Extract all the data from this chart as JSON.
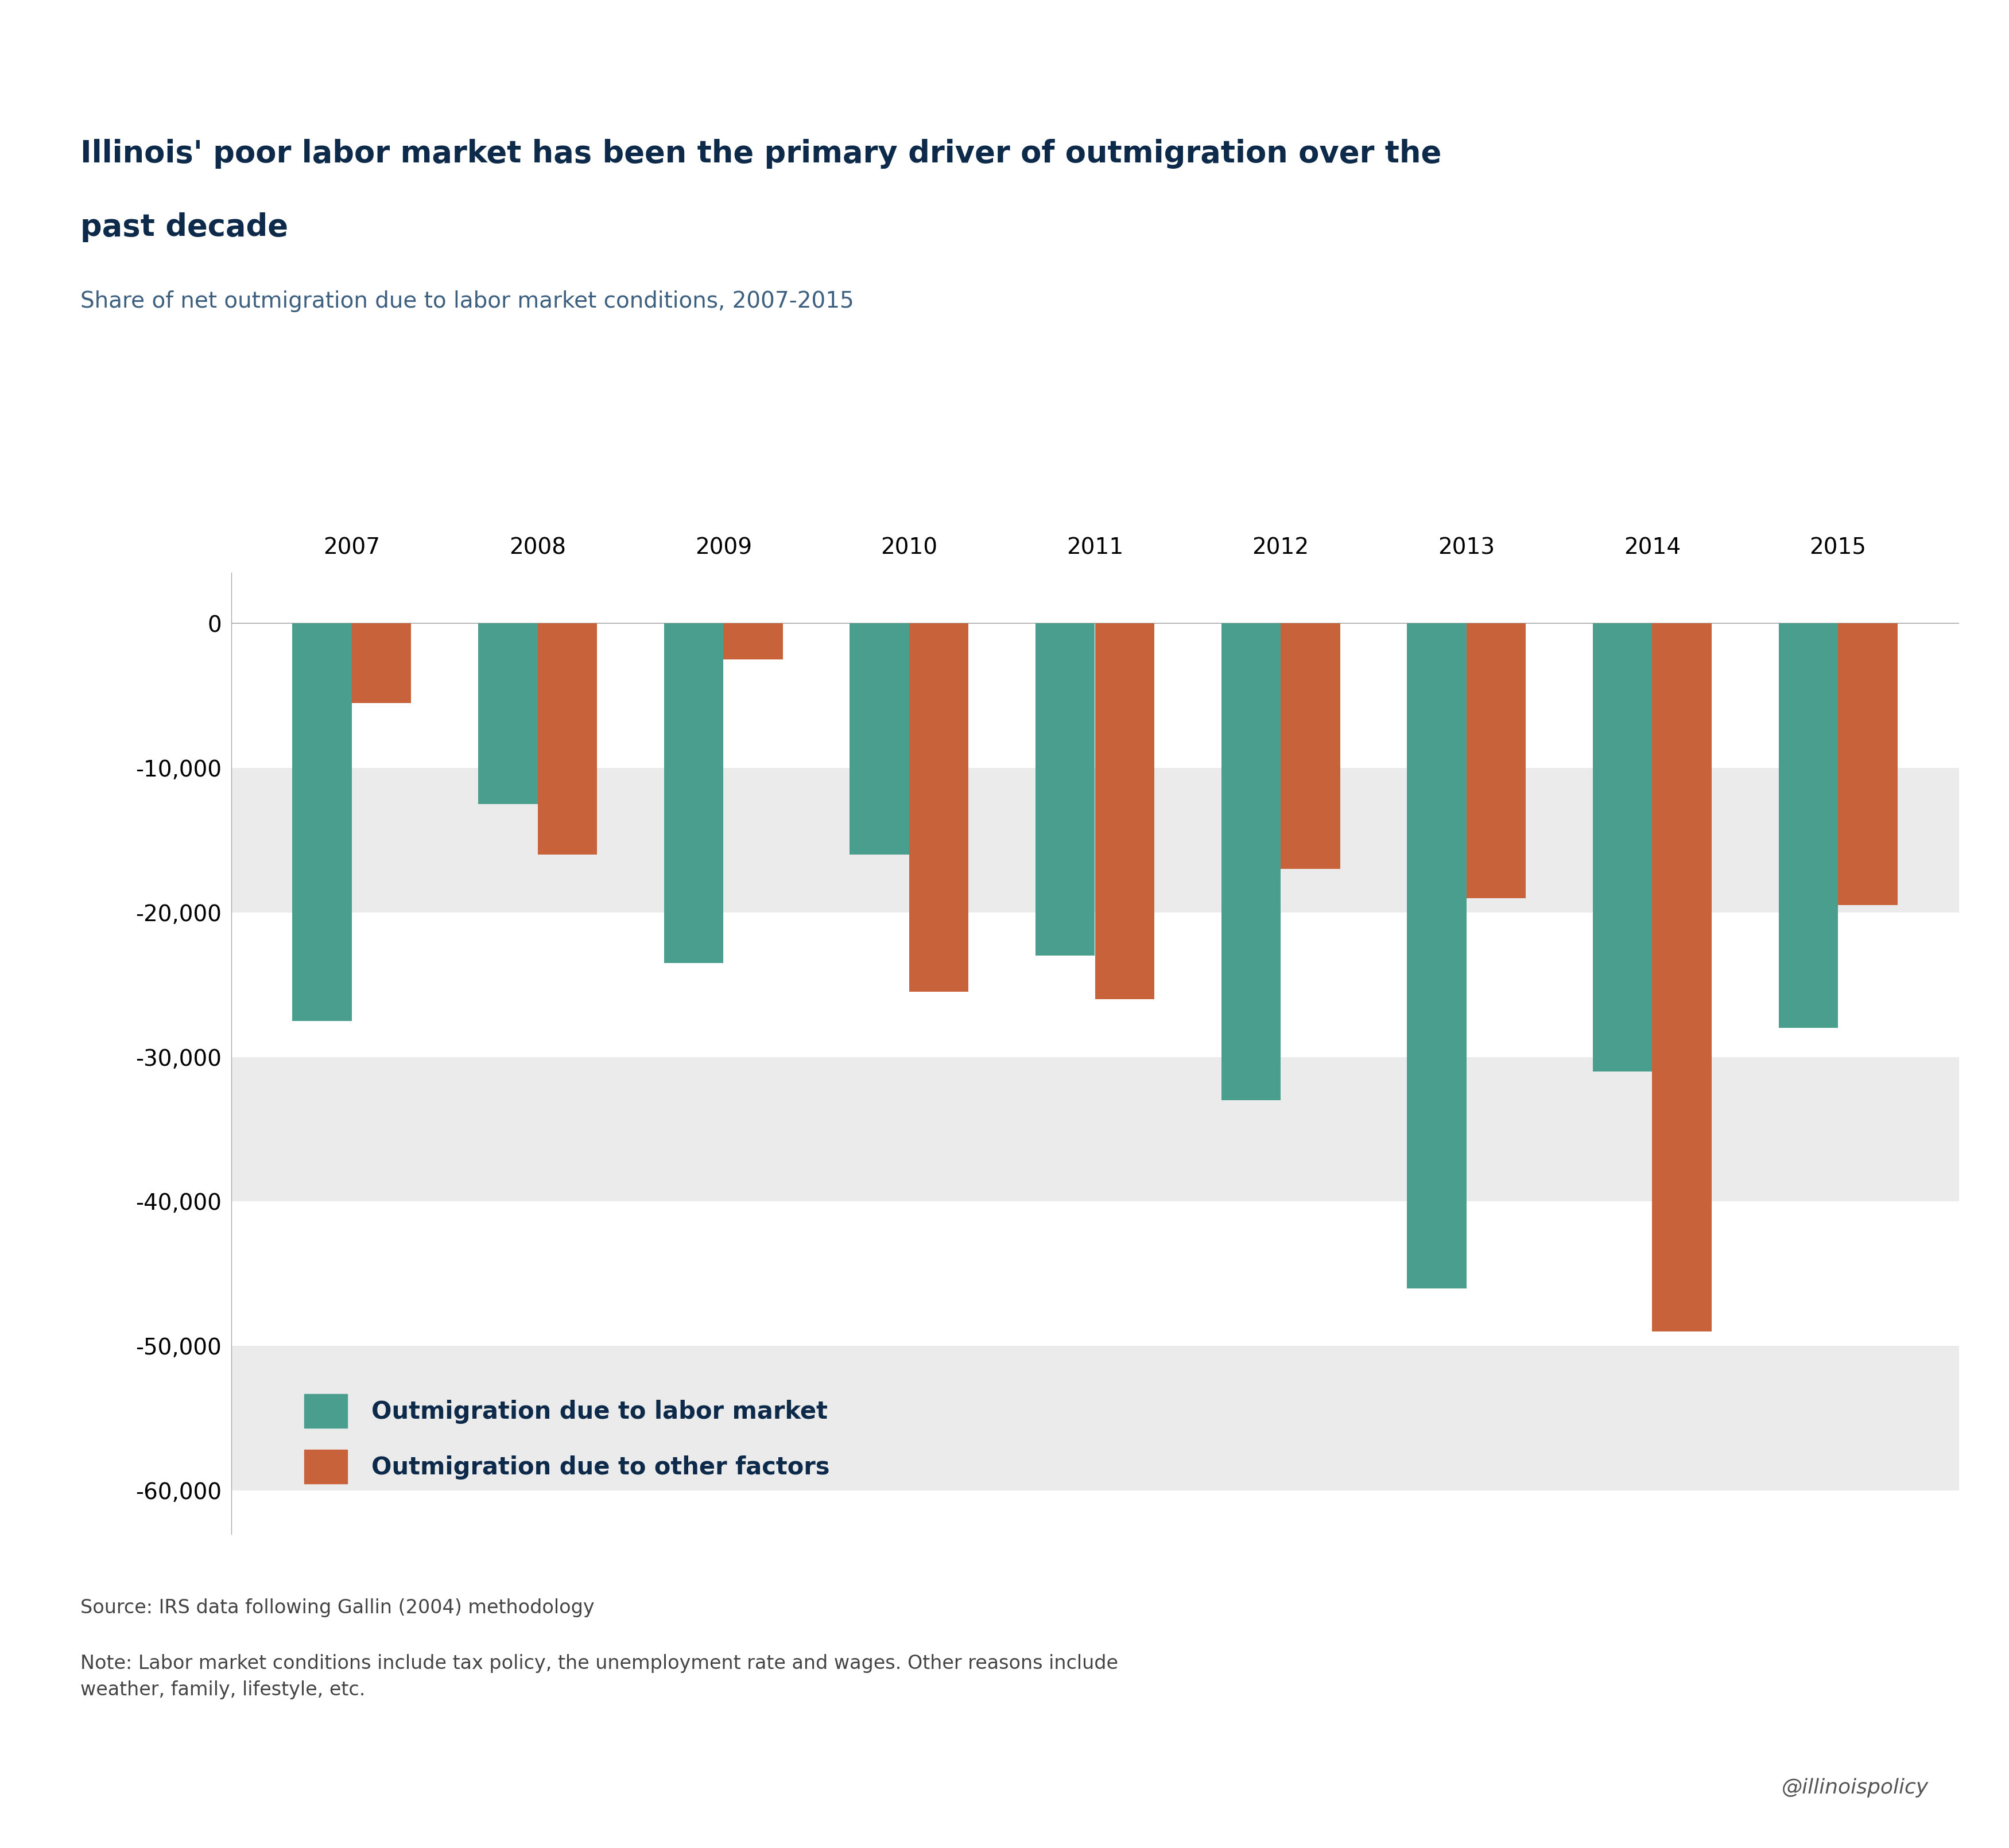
{
  "title_line1": "Illinois' poor labor market has been the primary driver of outmigration over the",
  "title_line2": "past decade",
  "subtitle": "Share of net outmigration due to labor market conditions, 2007-2015",
  "years": [
    2007,
    2008,
    2009,
    2010,
    2011,
    2012,
    2013,
    2014,
    2015
  ],
  "labor_market": [
    -27500,
    -12500,
    -23500,
    -16000,
    -23000,
    -33000,
    -46000,
    -31000,
    -28000
  ],
  "other_factors": [
    -5500,
    -16000,
    -2500,
    -25500,
    -26000,
    -17000,
    -19000,
    -49000,
    -19500
  ],
  "teal_color": "#4a9e8e",
  "orange_color": "#c8623a",
  "title_color": "#0d2a4a",
  "subtitle_color": "#3d6080",
  "bg_color": "#ffffff",
  "band_color": "#ebebeb",
  "legend_labor": "Outmigration due to labor market",
  "legend_other": "Outmigration due to other factors",
  "source_text": "Source: IRS data following Gallin (2004) methodology",
  "note_text": "Note: Labor market conditions include tax policy, the unemployment rate and wages. Other reasons include\nweather, family, lifestyle, etc.",
  "handle_text": "@illinoispolicy",
  "ylim_min": -63000,
  "ylim_max": 3500,
  "yticks": [
    0,
    -10000,
    -20000,
    -30000,
    -40000,
    -50000,
    -60000
  ],
  "bar_width": 0.32
}
